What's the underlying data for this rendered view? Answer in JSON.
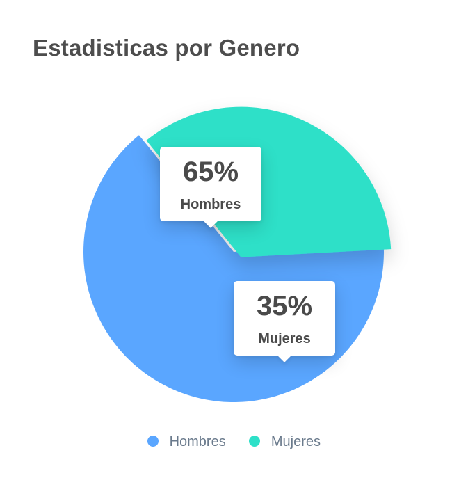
{
  "chart_data": {
    "type": "pie",
    "title": "Estadisticas por Genero",
    "slices": [
      {
        "label": "Hombres",
        "value": 65,
        "display": "65%",
        "color": "#5aa6ff"
      },
      {
        "label": "Mujeres",
        "value": 35,
        "display": "35%",
        "color": "#2ee0c8"
      }
    ],
    "legend": {
      "position": "bottom",
      "entries": [
        "Hombres",
        "Mujeres"
      ]
    }
  }
}
